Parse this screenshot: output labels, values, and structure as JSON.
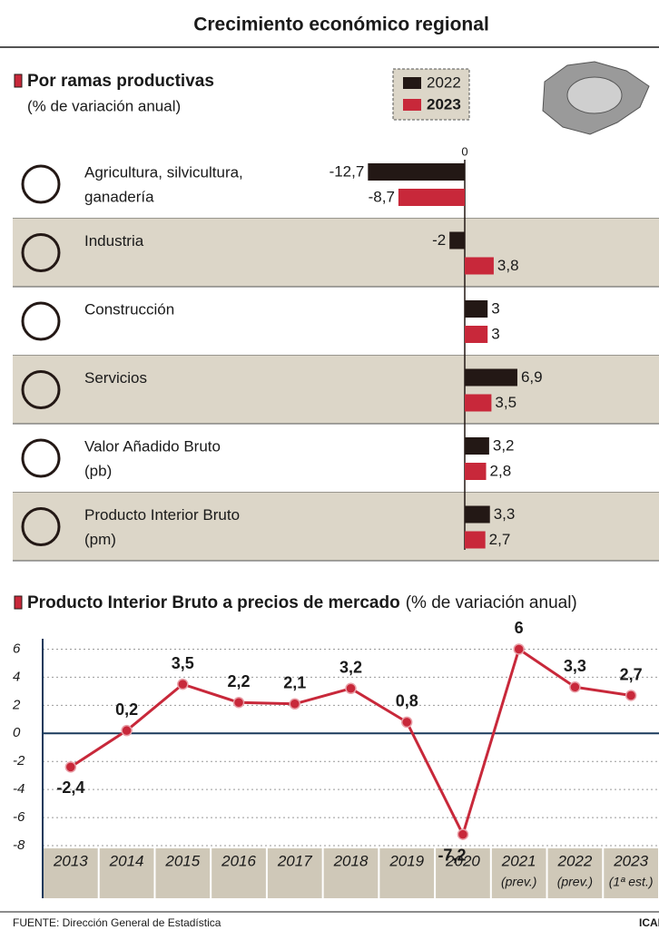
{
  "title": "Crecimiento económico regional",
  "source": "FUENTE: Dirección General de Estadística",
  "credit": "ICAL",
  "chart_data": [
    {
      "type": "hbar",
      "title": "Por ramas productivas",
      "subtitle": "(% de variación anual)",
      "categories": [
        [
          "Agricultura, silvicultura,",
          "ganadería"
        ],
        [
          "Industria"
        ],
        [
          "Construcción"
        ],
        [
          "Servicios"
        ],
        [
          "Valor Añadido Bruto",
          "(pb)"
        ],
        [
          "Producto Interior Bruto",
          "(pm)"
        ]
      ],
      "series": [
        {
          "name": "2022",
          "color": "#231815",
          "values": [
            -12.7,
            -2,
            3,
            6.9,
            3.2,
            3.3
          ],
          "value_labels": [
            "-12,7",
            "-2",
            "3",
            "6,9",
            "3,2",
            "3,3"
          ]
        },
        {
          "name": "2023",
          "color": "#c8283a",
          "values": [
            -8.7,
            3.8,
            3,
            3.5,
            2.8,
            2.7
          ],
          "value_labels": [
            "-8,7",
            "3,8",
            "3",
            "3,5",
            "2,8",
            "2,7"
          ]
        }
      ],
      "xlim": [
        -20,
        25
      ],
      "xticks": [
        0
      ]
    },
    {
      "type": "line",
      "title": "Producto Interior Bruto a precios de mercado",
      "subtitle": "(% de variación anual)",
      "categories": [
        "2013",
        "2014",
        "2015",
        "2016",
        "2017",
        "2018",
        "2019",
        "2020",
        "2021",
        "2022",
        "2023"
      ],
      "category_notes": [
        null,
        null,
        null,
        null,
        null,
        null,
        null,
        null,
        "(prev.)",
        "(prev.)",
        "(1ª est.)"
      ],
      "series": [
        {
          "name": "PIB",
          "color": "#c8283a",
          "values": [
            -2.4,
            0.2,
            3.5,
            2.2,
            2.1,
            3.2,
            0.8,
            -7.2,
            6,
            3.3,
            2.7
          ],
          "value_labels": [
            "-2,4",
            "0,2",
            "3,5",
            "2,2",
            "2,1",
            "3,2",
            "0,8",
            "-7,2",
            "6",
            "3,3",
            "2,7"
          ]
        }
      ],
      "ylim": [
        -8,
        7
      ],
      "yticks": [
        -8,
        -6,
        -4,
        -2,
        0,
        2,
        4,
        6
      ],
      "grid": true
    }
  ]
}
